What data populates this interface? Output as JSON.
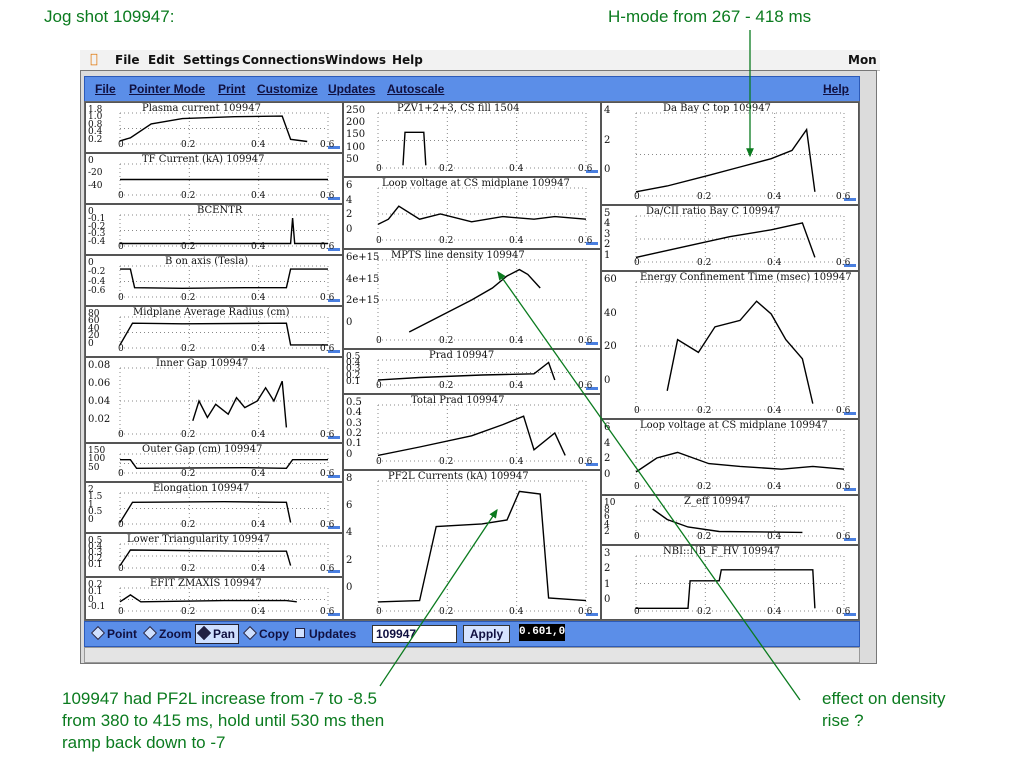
{
  "annotations": {
    "jog_shot": "Jog shot  109947:",
    "hmode": "H-mode from 267 - 418 ms",
    "pf2l_note_1": "109947 had PF2L increase from -7 to -8.5",
    "pf2l_note_2": "from 380 to 415 ms, hold until 530 ms then",
    "pf2l_note_3": "ramp back down to -7",
    "density_note_1": "effect on density",
    "density_note_2": "rise ?"
  },
  "mac_menu": {
    "file": "File",
    "edit": "Edit",
    "settings": "Settings",
    "connections": "Connections",
    "windows": "Windows",
    "help": "Help",
    "clock": "Mon",
    "apple_icon": "apple-icon"
  },
  "app_menu": {
    "file": "File",
    "pointer_mode": "Pointer Mode",
    "print": "Print",
    "customize": "Customize",
    "updates": "Updates",
    "autoscale": "Autoscale",
    "help": "Help"
  },
  "toolbar": {
    "point": "Point",
    "zoom": "Zoom",
    "pan": "Pan",
    "copy": "Copy",
    "updates": "Updates",
    "shot": "109947",
    "apply": "Apply",
    "coord": "0.601,0"
  },
  "colors": {
    "menu_blue": "#5b8ee8",
    "annot_green": "#0b7b1f"
  },
  "panels": {
    "c1": [
      {
        "title": "Plasma current     109947",
        "ticks": [
          "1.8",
          "1.0",
          "0.8",
          "0.4",
          "0.2"
        ],
        "bottom": "-0.2"
      },
      {
        "title": "TF Current (kA)    109947",
        "ticks": [
          "0",
          "-20",
          "-40"
        ]
      },
      {
        "title": "BCENTR",
        "ticks": [
          "0",
          "-0.1",
          "-0.2",
          "-0.3",
          "-0.4"
        ]
      },
      {
        "title": "B on axis (Tesla)",
        "ticks": [
          "0",
          "-0.2",
          "-0.4",
          "-0.6"
        ]
      },
      {
        "title": "Midplane Average Radius (cm)",
        "ticks": [
          "80",
          "60",
          "40",
          "20",
          "0"
        ]
      },
      {
        "title": "Inner Gap     109947",
        "ticks": [
          "0.08",
          "0.06",
          "0.04",
          "0.02"
        ]
      },
      {
        "title": "Outer Gap (cm)     109947",
        "ticks": [
          "150",
          "100",
          "50"
        ]
      },
      {
        "title": "Elongation     109947",
        "ticks": [
          "2",
          "1.5",
          "1",
          "0.5",
          "0"
        ]
      },
      {
        "title": "Lower Triangularity     109947",
        "ticks": [
          "0.5",
          "0.4",
          "0.3",
          "0.2",
          "0.1"
        ]
      },
      {
        "title": "EFIT ZMAXIS     109947",
        "ticks": [
          "0.2",
          "0.1",
          "0",
          "-0.1"
        ]
      }
    ],
    "c2": [
      {
        "title": "PZV1+2+3, CS fill     1504",
        "ticks": [
          "250",
          "200",
          "150",
          "100",
          "50"
        ]
      },
      {
        "title": "Loop voltage at CS midplane     109947",
        "ticks": [
          "6",
          "4",
          "2",
          "0"
        ]
      },
      {
        "title": "MPTS line density     109947",
        "ticks": [
          "6e+15",
          "4e+15",
          "2e+15",
          "0"
        ]
      },
      {
        "title": "Prad     109947",
        "ticks": [
          "0.5",
          "0.4",
          "0.3",
          "0.2",
          "0.1"
        ]
      },
      {
        "title": "Total Prad     109947",
        "ticks": [
          "0.5",
          "0.4",
          "0.3",
          "0.2",
          "0.1",
          "0"
        ]
      },
      {
        "title": "PF2L Currents (kA)     109947",
        "ticks": [
          "8",
          "6",
          "4",
          "2",
          "0"
        ]
      }
    ],
    "c3": [
      {
        "title": "Da Bay C top     109947",
        "ticks": [
          "4",
          "2",
          "0"
        ]
      },
      {
        "title": "Da/CII ratio Bay C     109947",
        "ticks": [
          "5",
          "4",
          "3",
          "2",
          "1"
        ]
      },
      {
        "title": "Energy Confinement Time (msec)     109947",
        "ticks": [
          "60",
          "40",
          "20",
          "0"
        ]
      },
      {
        "title": "Loop voltage at CS midplane     109947",
        "ticks": [
          "6",
          "4",
          "2",
          "0"
        ]
      },
      {
        "title": "Z_eff     109947",
        "ticks": [
          "10",
          "8",
          "6",
          "4",
          "2"
        ]
      },
      {
        "title": "NBI::NB_F_HV     109947",
        "ticks": [
          "3",
          "2",
          "1",
          "0"
        ]
      }
    ],
    "xticks": [
      "0",
      "0.2",
      "0.4",
      "0.6"
    ]
  }
}
